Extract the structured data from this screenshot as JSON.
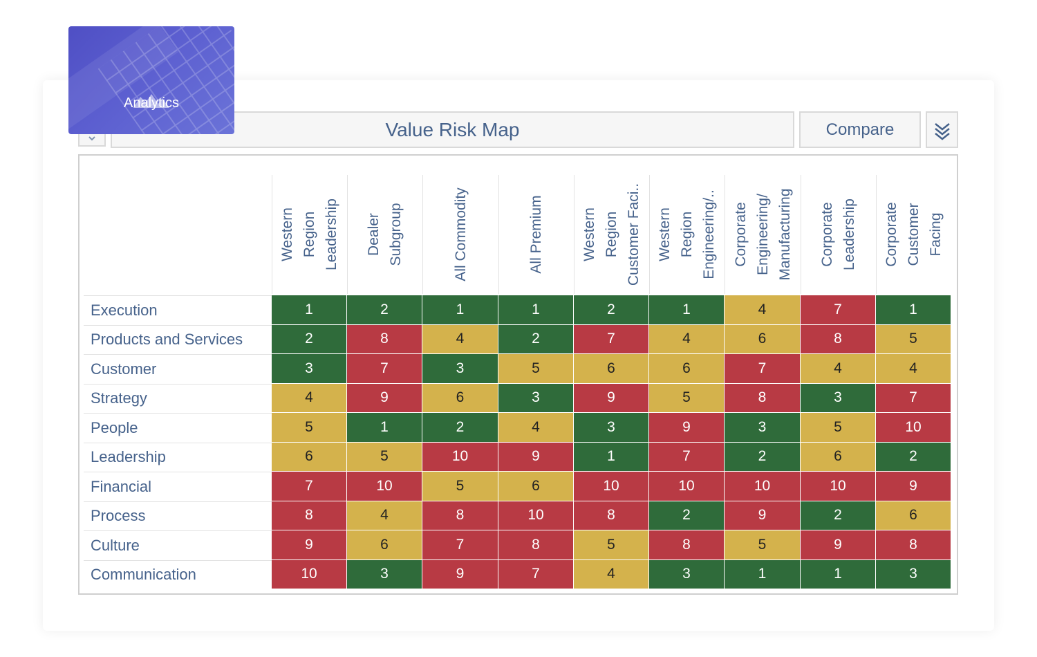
{
  "tile": {
    "label": "Analytics",
    "icon": "mountain-icon"
  },
  "header": {
    "title": "Value Risk Map",
    "compare_label": "Compare",
    "collapse_icon": "chevron-down-icon",
    "expand_icon": "double-chevron-down-icon"
  },
  "colors": {
    "green": "#2f6b3a",
    "yellow": "#d4b24c",
    "red": "#b83a44",
    "text_blue": "#46628b"
  },
  "chart_data": {
    "type": "heatmap",
    "title": "Value Risk Map",
    "columns": [
      "Western\nRegion\nLeadership",
      "Dealer\nSubgroup",
      "All Commodity",
      "All Premium",
      "Western\nRegion\nCustomer Faci..",
      "Western\nRegion\nEngineering/..",
      "Corporate\nEngineering/\nManufacturing",
      "Corporate\nLeadership",
      "Corporate\nCustomer\nFacing"
    ],
    "rows": [
      "Execution",
      "Products and Services",
      "Customer",
      "Strategy",
      "People",
      "Leadership",
      "Financial",
      "Process",
      "Culture",
      "Communication"
    ],
    "values": [
      [
        1,
        2,
        1,
        1,
        2,
        1,
        4,
        7,
        1
      ],
      [
        2,
        8,
        4,
        2,
        7,
        4,
        6,
        8,
        5
      ],
      [
        3,
        7,
        3,
        5,
        6,
        6,
        7,
        4,
        4
      ],
      [
        4,
        9,
        6,
        3,
        9,
        5,
        8,
        3,
        7
      ],
      [
        5,
        1,
        2,
        4,
        3,
        9,
        3,
        5,
        10
      ],
      [
        6,
        5,
        10,
        9,
        1,
        7,
        2,
        6,
        2
      ],
      [
        7,
        10,
        5,
        6,
        10,
        10,
        10,
        10,
        9
      ],
      [
        8,
        4,
        8,
        10,
        8,
        2,
        9,
        2,
        6
      ],
      [
        9,
        6,
        7,
        8,
        5,
        8,
        5,
        9,
        8
      ],
      [
        10,
        3,
        9,
        7,
        4,
        3,
        1,
        1,
        3
      ]
    ],
    "color_scale": {
      "green": [
        1,
        3
      ],
      "yellow": [
        4,
        6
      ],
      "red": [
        7,
        10
      ]
    }
  }
}
